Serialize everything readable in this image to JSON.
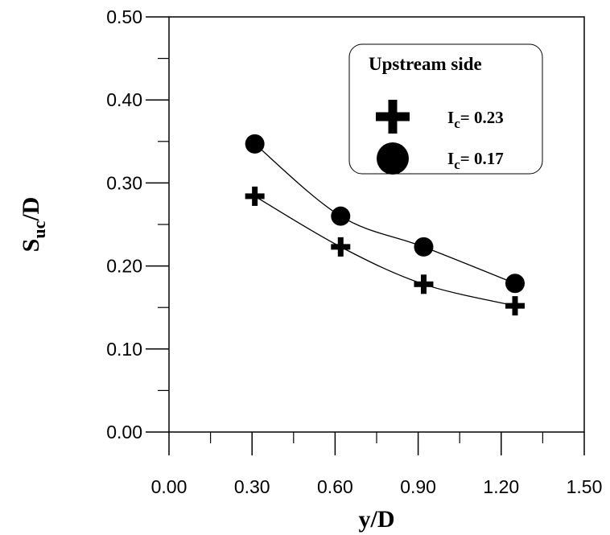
{
  "chart_data": {
    "type": "scatter",
    "xlabel": {
      "main": "y/D"
    },
    "ylabel": {
      "main": "S",
      "sub": "uc",
      "tail": "/D"
    },
    "xlim": [
      0,
      1.5
    ],
    "ylim": [
      0,
      0.5
    ],
    "x_ticks": [
      "0.00",
      "0.30",
      "0.60",
      "0.90",
      "1.20",
      "1.50"
    ],
    "y_ticks": [
      "0.00",
      "0.10",
      "0.20",
      "0.30",
      "0.40",
      "0.50"
    ],
    "grid": false,
    "legend": {
      "title": "Upstream side",
      "placement": "top-right"
    },
    "series": [
      {
        "name": "Ic= 0.23",
        "label": {
          "main": "I",
          "sub": "c",
          "tail": "= 0.23"
        },
        "marker": "plus",
        "x": [
          0.31,
          0.62,
          0.92,
          1.25
        ],
        "y": [
          0.284,
          0.223,
          0.178,
          0.152
        ]
      },
      {
        "name": "Ic= 0.17",
        "label": {
          "main": "I",
          "sub": "c",
          "tail": "= 0.17"
        },
        "marker": "circle",
        "x": [
          0.31,
          0.62,
          0.92,
          1.25
        ],
        "y": [
          0.347,
          0.26,
          0.223,
          0.179
        ]
      }
    ]
  }
}
